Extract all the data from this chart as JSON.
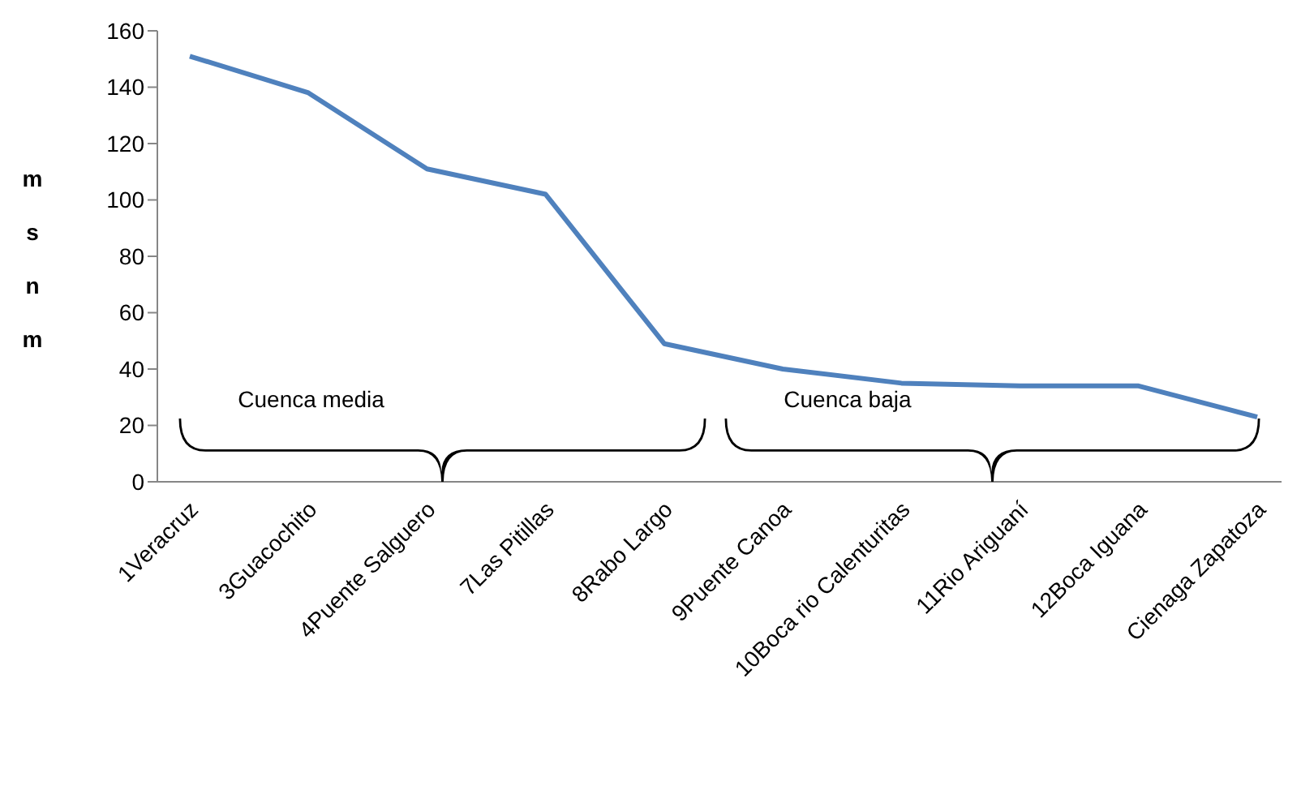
{
  "chart_data": {
    "type": "line",
    "ylabel": "msnm",
    "categories": [
      "1Veracruz",
      "3Guacochito",
      "4Puente Salguero",
      "7Las Pitillas",
      "8Rabo Largo",
      "9Puente Canoa",
      "10Boca rio Calenturitas",
      "11Rio Ariguaní",
      "12Boca Iguana",
      "Cienaga Zapatoza"
    ],
    "series": [
      {
        "color": "#4f81bd",
        "values": [
          151,
          138,
          111,
          102,
          49,
          40,
          35,
          34,
          34,
          23
        ]
      }
    ],
    "ylim": [
      0,
      160
    ],
    "yticks": [
      0,
      20,
      40,
      60,
      80,
      100,
      120,
      140,
      160
    ],
    "grid": false,
    "legend": false,
    "marker": "none",
    "annotations": [
      "Cuenca media",
      "Cuenca baja"
    ]
  }
}
